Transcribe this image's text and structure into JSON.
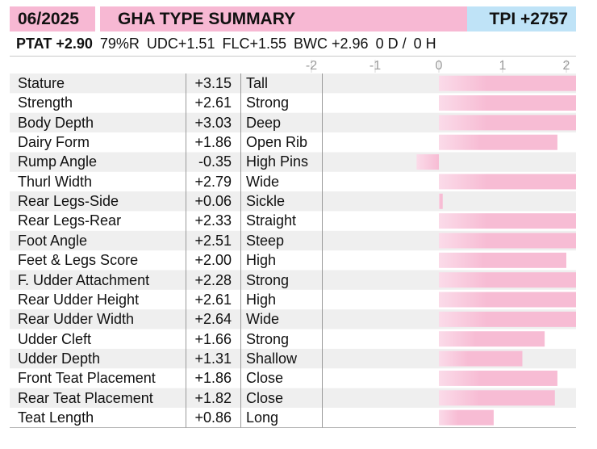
{
  "header": {
    "date": "06/2025",
    "title": "GHA TYPE SUMMARY",
    "tpi": "TPI +2757"
  },
  "summary": {
    "ptat": "PTAT +2.90",
    "reliability": "79%R",
    "udc": "UDC+1.51",
    "flc": "FLC+1.55",
    "bwc": "BWC +2.96",
    "daughters": "0 D /",
    "herds": "0 H"
  },
  "colors": {
    "header_pink": "#f7b8d3",
    "header_blue": "#bfe3f7",
    "bar": "#f7bcd4",
    "row_shade": "#efefef"
  },
  "chart_data": {
    "type": "bar",
    "orientation": "horizontal",
    "x_ticks": [
      "-2",
      "-1",
      "0",
      "1",
      "2"
    ],
    "xlim": [
      -2,
      2
    ],
    "categories": [
      "Stature",
      "Strength",
      "Body Depth",
      "Dairy Form",
      "Rump Angle",
      "Thurl Width",
      "Rear Legs-Side",
      "Rear Legs-Rear",
      "Foot Angle",
      "Feet & Legs Score",
      "F. Udder Attachment",
      "Rear Udder Height",
      "Rear Udder Width",
      "Udder Cleft",
      "Udder Depth",
      "Front Teat Placement",
      "Rear Teat Placement",
      "Teat Length"
    ],
    "value_labels": [
      "+3.15",
      "+2.61",
      "+3.03",
      "+1.86",
      "-0.35",
      "+2.79",
      "+0.06",
      "+2.33",
      "+2.51",
      "+2.00",
      "+2.28",
      "+2.61",
      "+2.64",
      "+1.66",
      "+1.31",
      "+1.86",
      "+1.82",
      "+0.86"
    ],
    "values": [
      3.15,
      2.61,
      3.03,
      1.86,
      -0.35,
      2.79,
      0.06,
      2.33,
      2.51,
      2.0,
      2.28,
      2.61,
      2.64,
      1.66,
      1.31,
      1.86,
      1.82,
      0.86
    ],
    "descriptors": [
      "Tall",
      "Strong",
      "Deep",
      "Open Rib",
      "High Pins",
      "Wide",
      "Sickle",
      "Straight",
      "Steep",
      "High",
      "Strong",
      "High",
      "Wide",
      "Strong",
      "Shallow",
      "Close",
      "Close",
      "Long"
    ],
    "grid": false
  }
}
